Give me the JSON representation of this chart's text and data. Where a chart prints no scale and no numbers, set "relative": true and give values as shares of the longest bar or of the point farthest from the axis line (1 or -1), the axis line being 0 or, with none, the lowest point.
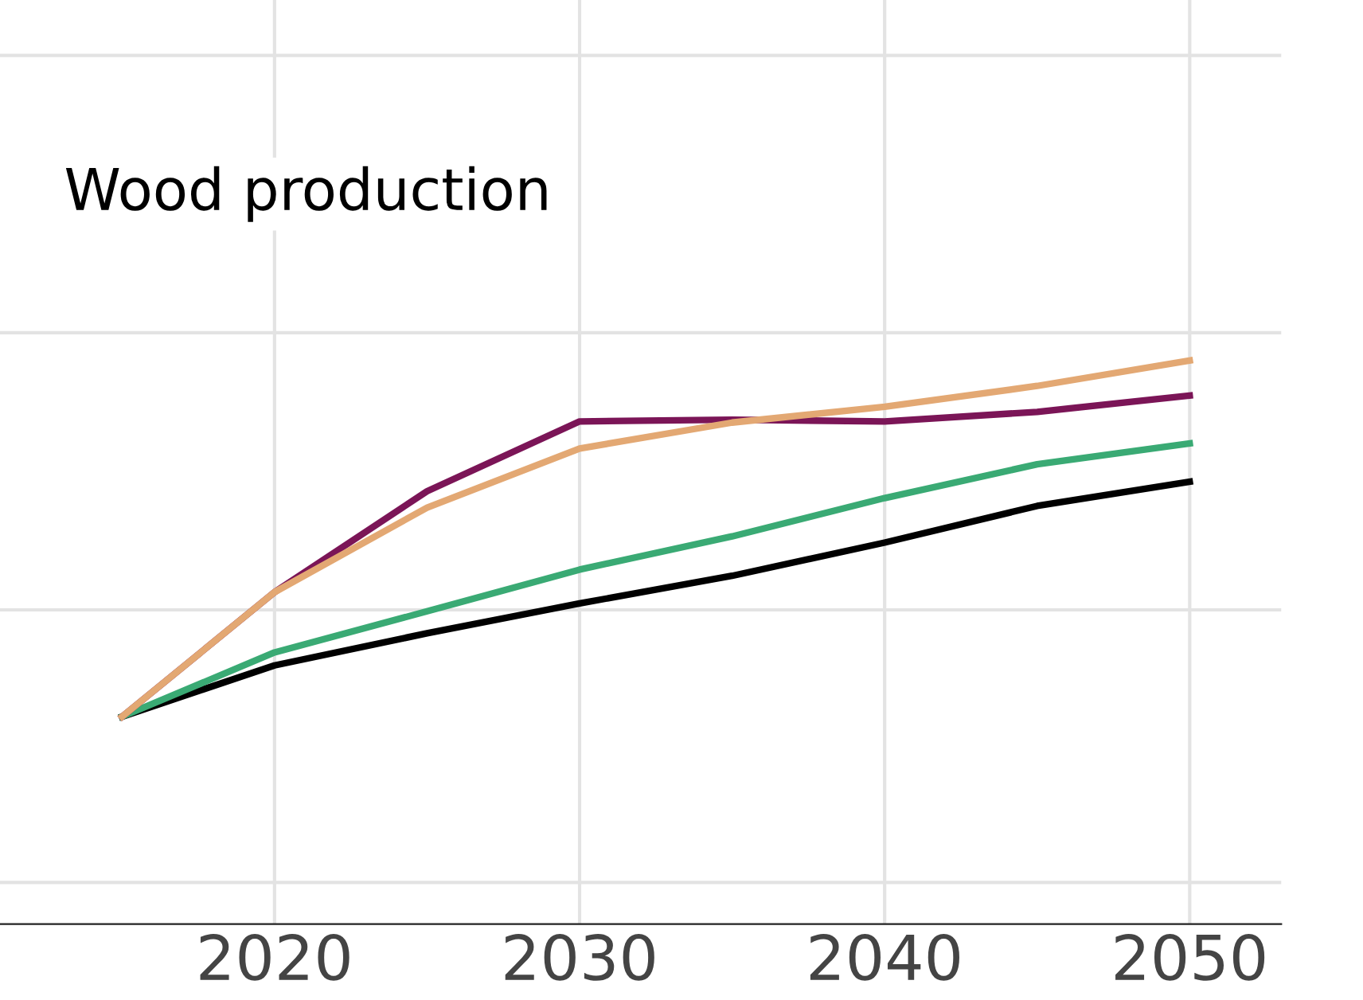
{
  "chart_data": {
    "type": "line",
    "title": "Wood production",
    "relative": true,
    "x": [
      2015,
      2020,
      2025,
      2030,
      2035,
      2040,
      2045,
      2050
    ],
    "xlim": [
      2011,
      2053
    ],
    "xticks": [
      2020,
      2030,
      2040,
      2050
    ],
    "grid": true,
    "legend": false,
    "marker": "none",
    "line_style": "solid",
    "series": [
      {
        "color": "#000000",
        "values": [
          0.368,
          0.459,
          0.516,
          0.569,
          0.618,
          0.677,
          0.742,
          0.785
        ]
      },
      {
        "color": "#3aaa74",
        "values": [
          0.368,
          0.482,
          0.555,
          0.629,
          0.688,
          0.756,
          0.816,
          0.853
        ]
      },
      {
        "color": "#7b1557",
        "values": [
          0.368,
          0.589,
          0.768,
          0.892,
          0.895,
          0.892,
          0.909,
          0.938
        ]
      },
      {
        "color": "#e3a873",
        "values": [
          0.368,
          0.589,
          0.739,
          0.844,
          0.89,
          0.918,
          0.955,
          1.0
        ]
      }
    ]
  }
}
